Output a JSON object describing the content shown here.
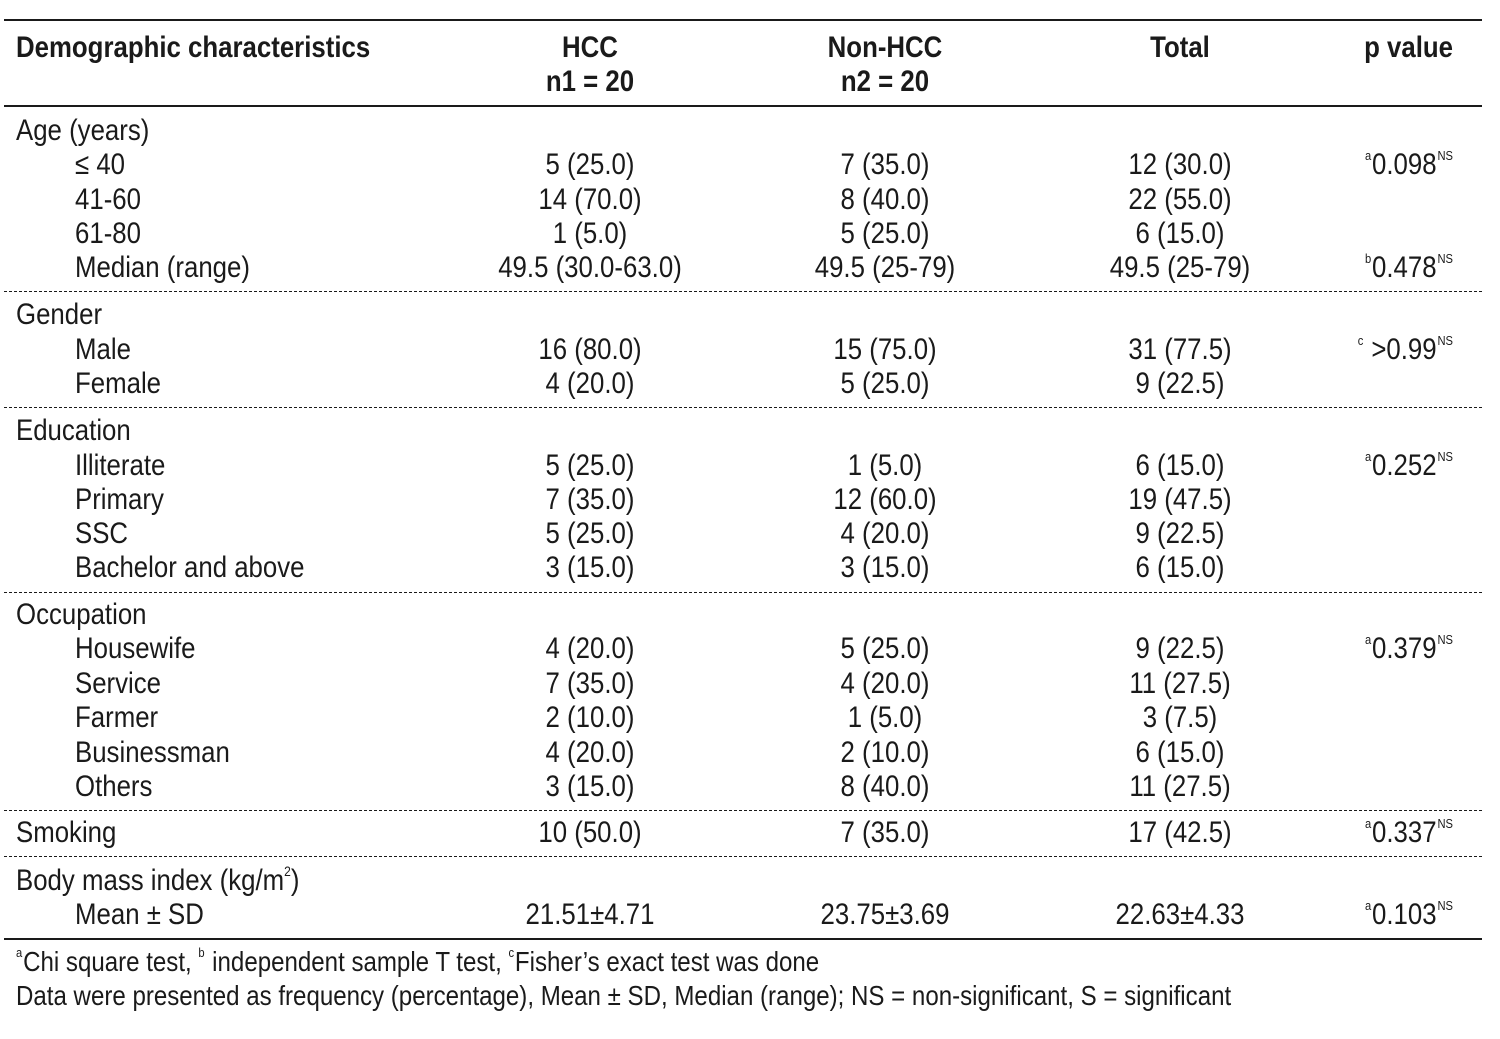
{
  "header": {
    "col0": "Demographic characteristics",
    "col1_line1": "HCC",
    "col1_line2": "n1 = 20",
    "col2_line1": "Non-HCC",
    "col2_line2": "n2 = 20",
    "col3": "Total",
    "col4": "p value"
  },
  "sections": [
    {
      "title": "Age (years)",
      "rows": [
        {
          "label": "≤ 40",
          "hcc": "5 (25.0)",
          "non_hcc": "7 (35.0)",
          "total": "12 (30.0)",
          "p_sup": "a",
          "p_val": "0.098",
          "p_ns": "NS"
        },
        {
          "label": "41-60",
          "hcc": "14 (70.0)",
          "non_hcc": "8 (40.0)",
          "total": "22 (55.0)"
        },
        {
          "label": "61-80",
          "hcc": "1 (5.0)",
          "non_hcc": "5 (25.0)",
          "total": "6 (15.0)"
        },
        {
          "label": "Median (range)",
          "hcc": "49.5 (30.0-63.0)",
          "non_hcc": "49.5 (25-79)",
          "total": "49.5 (25-79)",
          "p_sup": "b",
          "p_val": "0.478",
          "p_ns": "NS"
        }
      ]
    },
    {
      "title": "Gender",
      "rows": [
        {
          "label": "Male",
          "hcc": "16 (80.0)",
          "non_hcc": "15 (75.0)",
          "total": "31 (77.5)",
          "p_sup": "c",
          "p_val": " >0.99",
          "p_ns": "NS"
        },
        {
          "label": "Female",
          "hcc": "4 (20.0)",
          "non_hcc": "5 (25.0)",
          "total": "9 (22.5)"
        }
      ]
    },
    {
      "title": "Education",
      "rows": [
        {
          "label": "Illiterate",
          "hcc": "5 (25.0)",
          "non_hcc": "1 (5.0)",
          "total": "6 (15.0)",
          "p_sup": "a",
          "p_val": "0.252",
          "p_ns": "NS"
        },
        {
          "label": "Primary",
          "hcc": "7 (35.0)",
          "non_hcc": "12 (60.0)",
          "total": "19 (47.5)"
        },
        {
          "label": "SSC",
          "hcc": "5 (25.0)",
          "non_hcc": "4 (20.0)",
          "total": "9 (22.5)"
        },
        {
          "label": "Bachelor and above",
          "hcc": "3 (15.0)",
          "non_hcc": "3 (15.0)",
          "total": "6 (15.0)"
        }
      ]
    },
    {
      "title": "Occupation",
      "rows": [
        {
          "label": "Housewife",
          "hcc": "4 (20.0)",
          "non_hcc": "5 (25.0)",
          "total": "9 (22.5)",
          "p_sup": "a",
          "p_val": "0.379",
          "p_ns": "NS"
        },
        {
          "label": "Service",
          "hcc": "7 (35.0)",
          "non_hcc": "4 (20.0)",
          "total": "11 (27.5)"
        },
        {
          "label": "Farmer",
          "hcc": "2 (10.0)",
          "non_hcc": "1 (5.0)",
          "total": "3 (7.5)"
        },
        {
          "label": "Businessman",
          "hcc": "4 (20.0)",
          "non_hcc": "2 (10.0)",
          "total": "6 (15.0)"
        },
        {
          "label": "Others",
          "hcc": "3 (15.0)",
          "non_hcc": "8 (40.0)",
          "total": "11 (27.5)"
        }
      ]
    }
  ],
  "smoking": {
    "label": "Smoking",
    "hcc": "10 (50.0)",
    "non_hcc": "7 (35.0)",
    "total": "17 (42.5)",
    "p_sup": "a",
    "p_val": "0.337",
    "p_ns": "NS"
  },
  "bmi": {
    "title": "Body mass index (kg/m",
    "title_sup": "2",
    "title_end": ")",
    "label": "Mean ± SD",
    "hcc": "21.51±4.71",
    "non_hcc": "23.75±3.69",
    "total": "22.63±4.33",
    "p_sup": "a",
    "p_val": "0.103",
    "p_ns": "NS"
  },
  "footnotes": {
    "line1_a_sup": "a",
    "line1_a": "Chi square test, ",
    "line1_b_sup": "b",
    "line1_b": " independent sample T test, ",
    "line1_c_sup": "c",
    "line1_c": "Fisher’s exact test was done",
    "line2": "Data were presented as frequency (percentage), Mean ± SD, Median (range); NS = non-significant, S = significant"
  }
}
